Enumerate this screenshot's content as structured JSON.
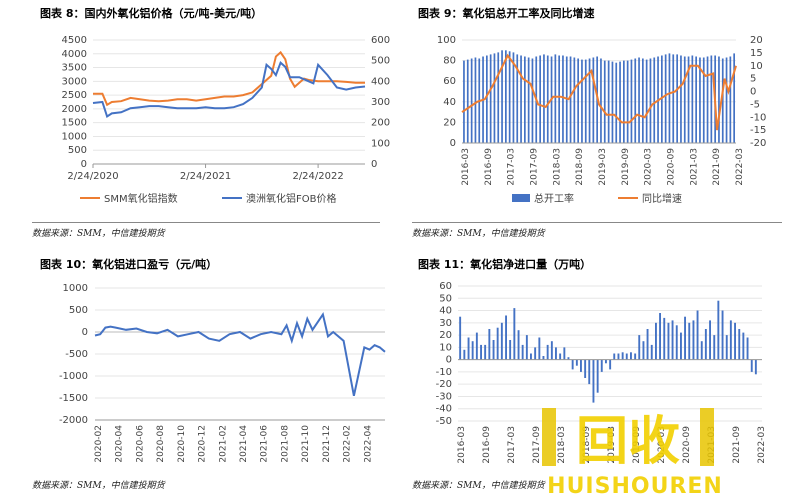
{
  "chart_data": [
    {
      "id": "c8",
      "type": "line",
      "title": "图表 8：国内外氧化铝价格（元/吨-美元/吨）",
      "source": "数据来源：SMM，中信建投期货",
      "x_labels": [
        "2/24/2020",
        "2/24/2021",
        "2/24/2022"
      ],
      "x_range": [
        0,
        29
      ],
      "ylim": [
        0,
        4500
      ],
      "yticks": [
        0,
        500,
        1000,
        1500,
        2000,
        2500,
        3000,
        3500,
        4000,
        4500
      ],
      "y2lim": [
        0,
        600
      ],
      "y2ticks": [
        0,
        100,
        200,
        300,
        400,
        500,
        600
      ],
      "legend_position": "bottom",
      "series": [
        {
          "name": "SMM氧化铝指数",
          "axis": "left",
          "color": "#ED7D31",
          "x": [
            0,
            1,
            1.5,
            2,
            3,
            4,
            5,
            6,
            7,
            8,
            9,
            10,
            11,
            12,
            13,
            14,
            15,
            16,
            17,
            18,
            19,
            19.5,
            20,
            20.5,
            21,
            21.5,
            22,
            22.5,
            23,
            24,
            25,
            26,
            27,
            28,
            29
          ],
          "y": [
            2550,
            2550,
            2150,
            2250,
            2280,
            2400,
            2350,
            2300,
            2280,
            2300,
            2350,
            2350,
            2300,
            2350,
            2400,
            2450,
            2450,
            2500,
            2600,
            2900,
            3200,
            3900,
            4050,
            3800,
            3100,
            2800,
            2950,
            3100,
            3050,
            3000,
            3000,
            3000,
            2980,
            2950,
            2950
          ]
        },
        {
          "name": "澳洲氧化铝FOB价格",
          "axis": "right",
          "color": "#4472C4",
          "x": [
            0,
            1,
            1.5,
            2,
            3,
            4,
            5,
            6,
            7,
            8,
            9,
            10,
            11,
            12,
            13,
            14,
            15,
            16,
            17,
            18,
            18.5,
            19,
            19.5,
            20,
            20.5,
            21,
            22,
            23,
            23.5,
            24,
            25,
            26,
            27,
            28,
            29
          ],
          "y": [
            295,
            300,
            230,
            245,
            250,
            270,
            275,
            280,
            280,
            275,
            270,
            270,
            270,
            275,
            270,
            270,
            275,
            290,
            320,
            370,
            480,
            460,
            430,
            490,
            470,
            420,
            420,
            400,
            390,
            480,
            430,
            370,
            360,
            370,
            375
          ]
        }
      ]
    },
    {
      "id": "c9",
      "type": "bar+line",
      "title": "图表 9：氧化铝总开工率及同比增速",
      "source": "数据来源：SMM，中信建投期货",
      "x_labels": [
        "2016-03",
        "2016-09",
        "2017-03",
        "2017-09",
        "2018-03",
        "2018-09",
        "2019-03",
        "2019-09",
        "2020-03",
        "2020-09",
        "2021-03",
        "2021-09",
        "2022-03"
      ],
      "x_range": [
        0,
        72
      ],
      "ylim": [
        0,
        100
      ],
      "yticks": [
        0,
        20,
        40,
        60,
        80,
        100
      ],
      "y2lim": [
        -20,
        20
      ],
      "y2ticks": [
        -20,
        -15,
        -10,
        -5,
        0,
        5,
        10,
        15,
        20
      ],
      "legend_position": "bottom",
      "series": [
        {
          "name": "总开工率",
          "axis": "left",
          "kind": "bar",
          "color": "#4472C4",
          "values": [
            80,
            81,
            82,
            83,
            82,
            84,
            85,
            86,
            87,
            88,
            90,
            90,
            89,
            88,
            86,
            85,
            84,
            83,
            82,
            84,
            85,
            86,
            85,
            84,
            86,
            85,
            85,
            84,
            84,
            83,
            82,
            81,
            81,
            82,
            83,
            84,
            82,
            80,
            80,
            79,
            78,
            79,
            80,
            80,
            81,
            82,
            83,
            82,
            81,
            82,
            83,
            84,
            85,
            86,
            87,
            86,
            86,
            85,
            84,
            84,
            85,
            84,
            83,
            83,
            84,
            85,
            85,
            84,
            82,
            83,
            84,
            87
          ]
        },
        {
          "name": "同比增速",
          "axis": "right",
          "kind": "line",
          "color": "#ED7D31",
          "x": [
            0,
            2,
            4,
            6,
            8,
            10,
            12,
            14,
            16,
            18,
            20,
            22,
            24,
            26,
            28,
            30,
            32,
            34,
            36,
            38,
            40,
            42,
            44,
            46,
            48,
            50,
            52,
            54,
            56,
            58,
            60,
            62,
            64,
            66,
            67,
            68,
            69,
            70,
            72
          ],
          "y": [
            -8,
            -6,
            -4,
            -3,
            2,
            8,
            14,
            10,
            5,
            3,
            -5,
            -6,
            -2,
            -2,
            -3,
            2,
            5,
            8,
            -5,
            -9,
            -9,
            -12,
            -12,
            -9,
            -10,
            -5,
            -3,
            -1,
            0,
            3,
            10,
            10,
            6,
            7,
            -15,
            -5,
            5,
            0,
            10
          ]
        }
      ]
    },
    {
      "id": "c10",
      "type": "line",
      "title": "图表 10：氧化铝进口盈亏（元/吨）",
      "source": "数据来源：SMM，中信建投期货",
      "x_labels": [
        "2020-02",
        "2020-04",
        "2020-06",
        "2020-08",
        "2020-10",
        "2020-12",
        "2021-02",
        "2021-04",
        "2021-06",
        "2021-08",
        "2021-10",
        "2021-12",
        "2022-02",
        "2022-04"
      ],
      "x_range": [
        0,
        28
      ],
      "ylim": [
        -2000,
        1000
      ],
      "yticks": [
        -2000,
        -1500,
        -1000,
        -500,
        0,
        500,
        1000
      ],
      "series": [
        {
          "name": "",
          "color": "#4472C4",
          "x": [
            0,
            0.5,
            1,
            1.5,
            2,
            3,
            4,
            5,
            6,
            7,
            8,
            9,
            10,
            11,
            12,
            13,
            14,
            15,
            16,
            17,
            18,
            18.5,
            19,
            19.5,
            20,
            20.5,
            21,
            22,
            22.5,
            23,
            24,
            25,
            26,
            26.5,
            27,
            27.5,
            28
          ],
          "y": [
            -80,
            -50,
            100,
            120,
            100,
            50,
            80,
            0,
            -30,
            50,
            -100,
            -50,
            0,
            -150,
            -200,
            -50,
            0,
            -150,
            -50,
            0,
            -50,
            150,
            -200,
            200,
            -100,
            300,
            50,
            400,
            -100,
            0,
            -200,
            -1450,
            -350,
            -400,
            -300,
            -350,
            -450
          ]
        }
      ]
    },
    {
      "id": "c11",
      "type": "bar",
      "title": "图表 11：氧化铝净进口量（万吨）",
      "source": "数据来源：SMM，中信建投期货",
      "x_labels": [
        "2016-03",
        "2016-09",
        "2017-03",
        "2017-09",
        "2018-03",
        "2018-09",
        "2019-03",
        "2019-09",
        "2020-03",
        "2020-09",
        "2021-03",
        "2021-09",
        "2022-03"
      ],
      "x_range": [
        0,
        73
      ],
      "ylim": [
        -50,
        60
      ],
      "yticks": [
        -50,
        -40,
        -30,
        -20,
        -10,
        0,
        10,
        20,
        30,
        40,
        50,
        60
      ],
      "series": [
        {
          "name": "",
          "color": "#4472C4",
          "values": [
            35,
            8,
            18,
            15,
            22,
            12,
            12,
            25,
            16,
            26,
            30,
            36,
            16,
            42,
            24,
            12,
            20,
            5,
            10,
            18,
            3,
            12,
            15,
            10,
            5,
            10,
            2,
            -8,
            -5,
            -10,
            -15,
            -20,
            -35,
            -27,
            -10,
            -3,
            -8,
            5,
            5,
            6,
            5,
            6,
            5,
            20,
            15,
            25,
            12,
            30,
            38,
            34,
            30,
            32,
            28,
            22,
            35,
            30,
            32,
            40,
            15,
            25,
            32,
            20,
            48,
            40,
            20,
            32,
            30,
            25,
            22,
            18,
            -10,
            -12,
            0
          ]
        }
      ]
    }
  ],
  "watermark": {
    "text": "HUISHOUREN",
    "glyph": "回收"
  }
}
